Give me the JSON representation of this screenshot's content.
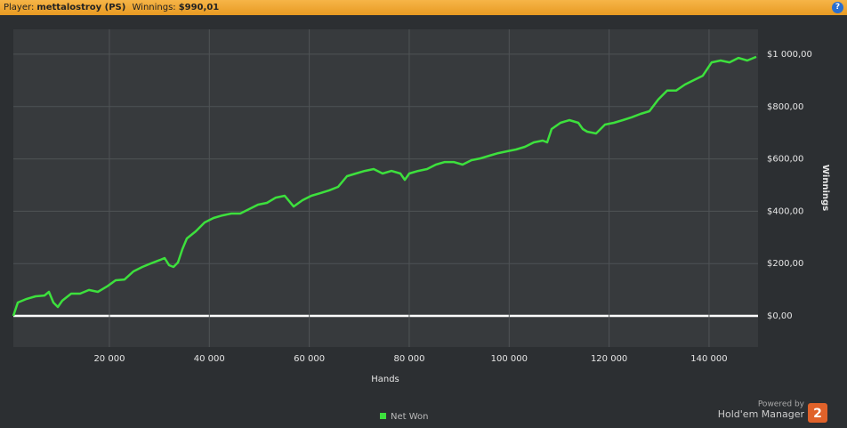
{
  "header": {
    "player_label": "Player:",
    "player": "mettalostroy (PS)",
    "winnings_label": "Winnings:",
    "winnings": "$990,01",
    "help": "?"
  },
  "chart_data": {
    "type": "line",
    "x_label": "Hands",
    "y_label": "Winnings",
    "x": [
      780,
      1670,
      3450,
      5230,
      7010,
      7900,
      8790,
      9680,
      10570,
      12350,
      14130,
      15910,
      17690,
      19470,
      21250,
      23030,
      24810,
      26600,
      28380,
      30160,
      31050,
      31940,
      32830,
      33720,
      34610,
      35500,
      37280,
      39060,
      40840,
      42620,
      44400,
      46180,
      47960,
      49740,
      51520,
      53300,
      55080,
      56860,
      58640,
      60420,
      62200,
      63980,
      65760,
      67540,
      69320,
      71100,
      72880,
      74660,
      76440,
      78220,
      79110,
      80000,
      81780,
      83560,
      85340,
      87120,
      88900,
      90680,
      92470,
      94250,
      96030,
      97810,
      99590,
      101370,
      103150,
      104930,
      106710,
      107600,
      108490,
      110270,
      112050,
      113830,
      114720,
      115610,
      117390,
      119170,
      120950,
      122730,
      124510,
      126290,
      128070,
      129850,
      131630,
      133410,
      135190,
      136970,
      138750,
      140530,
      142310,
      144090,
      145870,
      147650,
      149440
    ],
    "series": [
      {
        "name": "Net Won",
        "color": "#3de03d",
        "values": [
          0,
          51,
          65,
          75,
          78,
          92,
          51,
          34,
          58,
          85,
          85,
          99,
          92,
          112,
          136,
          139,
          170,
          187,
          201,
          214,
          221,
          194,
          187,
          204,
          255,
          296,
          323,
          357,
          374,
          384,
          391,
          391,
          408,
          425,
          432,
          452,
          459,
          418,
          442,
          459,
          469,
          480,
          493,
          534,
          544,
          554,
          561,
          544,
          554,
          544,
          520,
          544,
          554,
          561,
          578,
          588,
          588,
          578,
          595,
          602,
          612,
          622,
          629,
          636,
          646,
          663,
          670,
          663,
          714,
          738,
          748,
          738,
          714,
          704,
          697,
          731,
          738,
          748,
          759,
          772,
          782,
          827,
          861,
          861,
          884,
          901,
          918,
          969,
          976,
          969,
          986,
          976,
          990.01
        ]
      }
    ],
    "xlim": [
      780,
      149800
    ],
    "ylim": [
      -119,
      1095
    ],
    "xticks": [
      {
        "value": 20000,
        "label": "20 000"
      },
      {
        "value": 40000,
        "label": "40 000"
      },
      {
        "value": 60000,
        "label": "60 000"
      },
      {
        "value": 80000,
        "label": "80 000"
      },
      {
        "value": 100000,
        "label": "100 000"
      },
      {
        "value": 120000,
        "label": "120 000"
      },
      {
        "value": 140000,
        "label": "140 000"
      }
    ],
    "yticks": [
      {
        "value": 0,
        "label": "$0,00"
      },
      {
        "value": 200,
        "label": "$200,00"
      },
      {
        "value": 400,
        "label": "$400,00"
      },
      {
        "value": 600,
        "label": "$600,00"
      },
      {
        "value": 800,
        "label": "$800,00"
      },
      {
        "value": 1000,
        "label": "$1 000,00"
      }
    ],
    "grid": true
  },
  "footer": {
    "powered": "Powered by",
    "brand": "Hold'em Manager",
    "version": "2"
  }
}
